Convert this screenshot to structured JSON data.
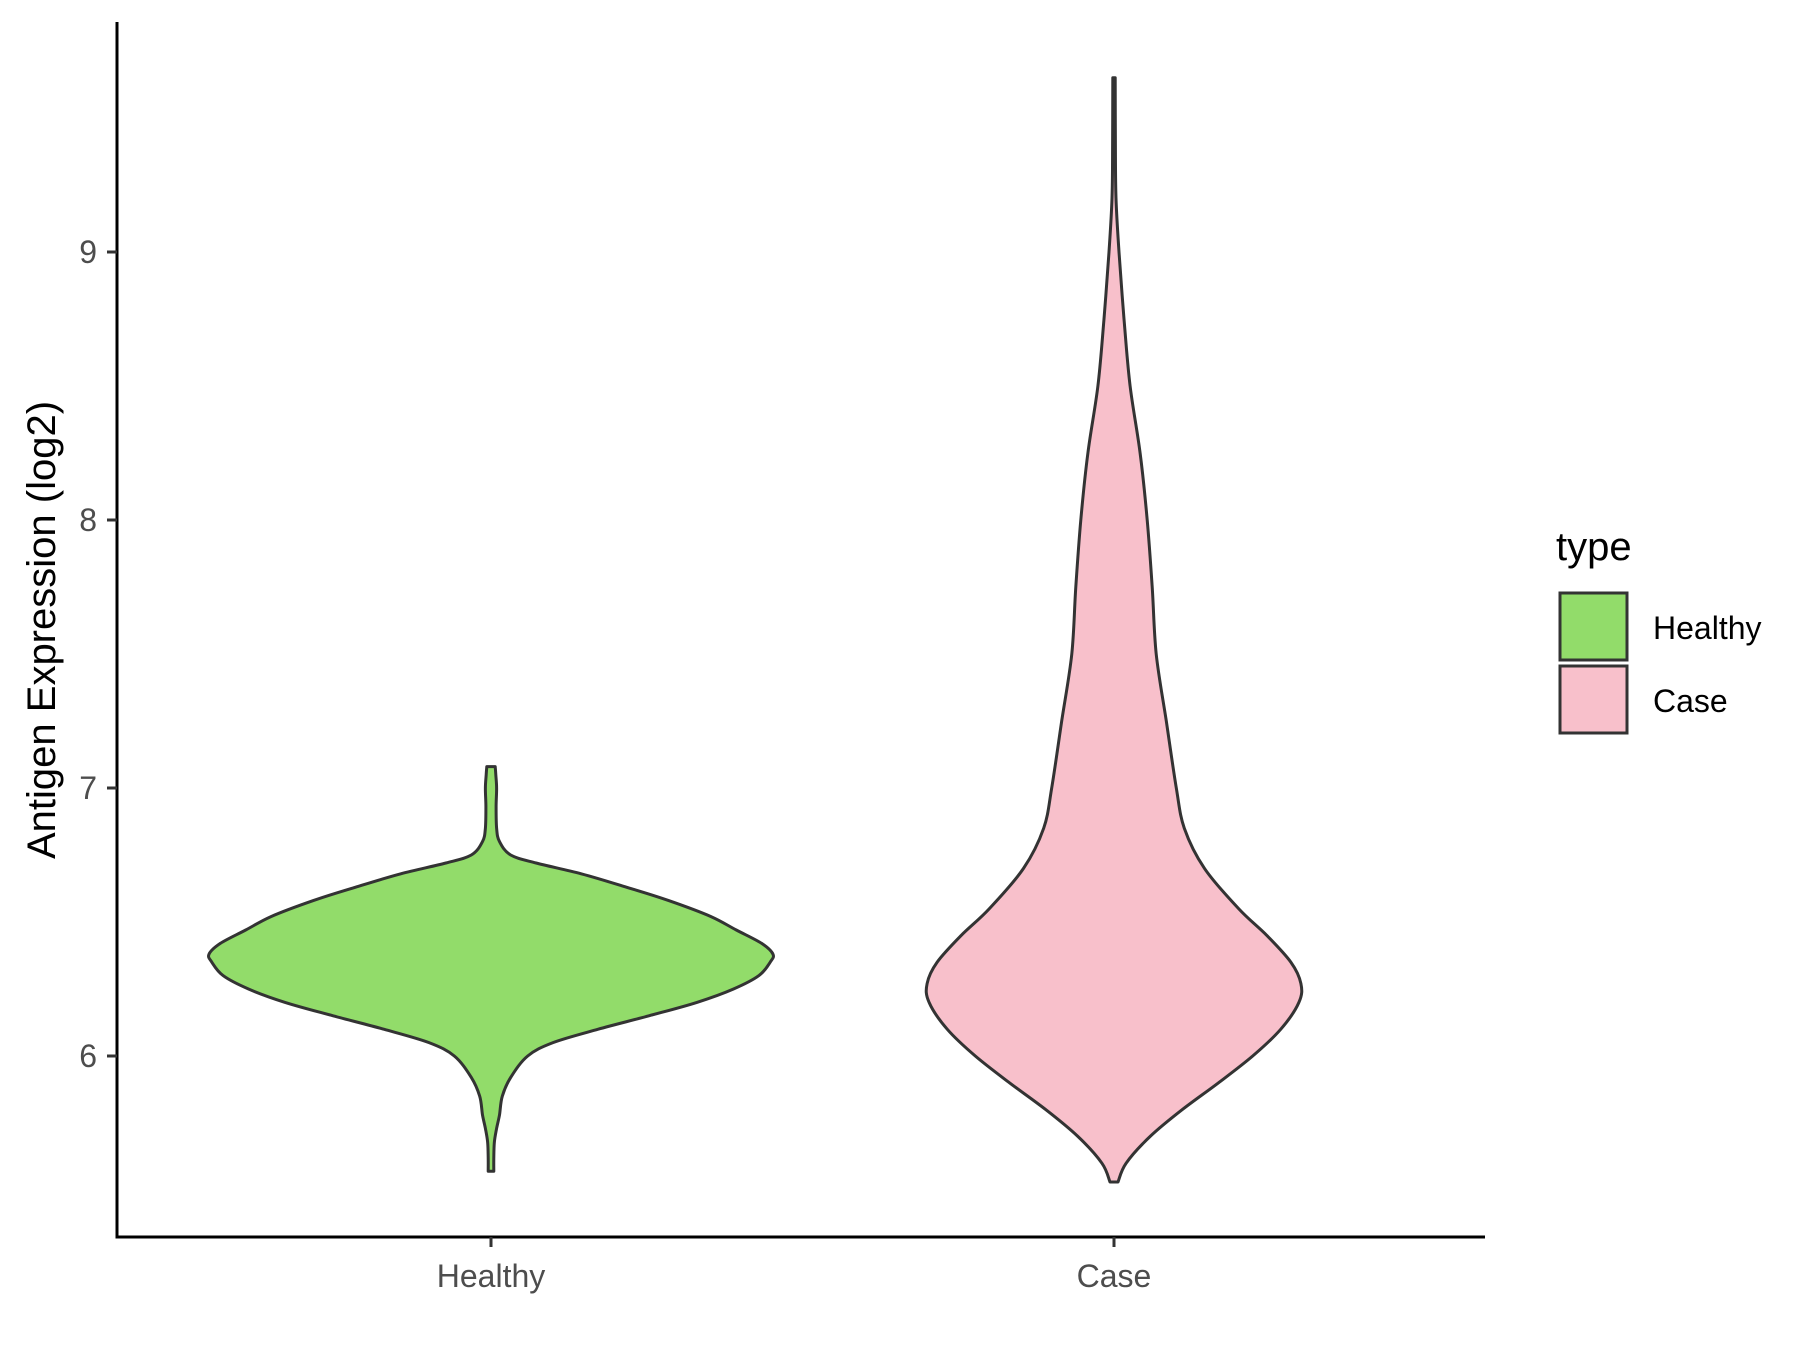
{
  "chart_data": {
    "type": "violin",
    "title": "",
    "xlabel": "",
    "ylabel": "Antigen Expression (log2)",
    "ylim": [
      5.35,
      9.9
    ],
    "yticks": [
      6,
      7,
      8,
      9
    ],
    "categories": [
      "Healthy",
      "Case"
    ],
    "grid": false,
    "legend": {
      "title": "type",
      "position": "right",
      "entries": [
        "Healthy",
        "Case"
      ]
    },
    "colors": {
      "Healthy": "#92dc6a",
      "Case": "#f8c0cb",
      "outline": "#333333"
    },
    "series": [
      {
        "name": "Healthy",
        "range": [
          5.57,
          7.08
        ],
        "density_profile": [
          [
            5.57,
            0.01
          ],
          [
            5.62,
            0.01
          ],
          [
            5.68,
            0.012
          ],
          [
            5.73,
            0.02
          ],
          [
            5.78,
            0.03
          ],
          [
            5.85,
            0.04
          ],
          [
            5.92,
            0.07
          ],
          [
            6.0,
            0.13
          ],
          [
            6.05,
            0.22
          ],
          [
            6.1,
            0.38
          ],
          [
            6.15,
            0.56
          ],
          [
            6.2,
            0.73
          ],
          [
            6.25,
            0.86
          ],
          [
            6.3,
            0.95
          ],
          [
            6.35,
            0.99
          ],
          [
            6.38,
            1.0
          ],
          [
            6.42,
            0.96
          ],
          [
            6.47,
            0.87
          ],
          [
            6.52,
            0.78
          ],
          [
            6.58,
            0.63
          ],
          [
            6.63,
            0.48
          ],
          [
            6.68,
            0.32
          ],
          [
            6.72,
            0.16
          ],
          [
            6.75,
            0.07
          ],
          [
            6.8,
            0.03
          ],
          [
            6.85,
            0.02
          ],
          [
            6.93,
            0.018
          ],
          [
            7.0,
            0.02
          ],
          [
            7.05,
            0.017
          ],
          [
            7.08,
            0.015
          ]
        ]
      },
      {
        "name": "Case",
        "range": [
          5.53,
          9.65
        ],
        "density_profile": [
          [
            5.53,
            0.02
          ],
          [
            5.6,
            0.06
          ],
          [
            5.7,
            0.18
          ],
          [
            5.8,
            0.34
          ],
          [
            5.9,
            0.52
          ],
          [
            6.0,
            0.69
          ],
          [
            6.1,
            0.83
          ],
          [
            6.2,
            0.92
          ],
          [
            6.27,
            0.93
          ],
          [
            6.35,
            0.88
          ],
          [
            6.45,
            0.76
          ],
          [
            6.55,
            0.62
          ],
          [
            6.7,
            0.45
          ],
          [
            6.85,
            0.35
          ],
          [
            7.0,
            0.31
          ],
          [
            7.25,
            0.26
          ],
          [
            7.5,
            0.21
          ],
          [
            7.75,
            0.19
          ],
          [
            8.0,
            0.165
          ],
          [
            8.25,
            0.13
          ],
          [
            8.5,
            0.08
          ],
          [
            8.75,
            0.05
          ],
          [
            9.0,
            0.025
          ],
          [
            9.2,
            0.01
          ],
          [
            9.4,
            0.007
          ],
          [
            9.65,
            0.006
          ]
        ]
      }
    ]
  }
}
